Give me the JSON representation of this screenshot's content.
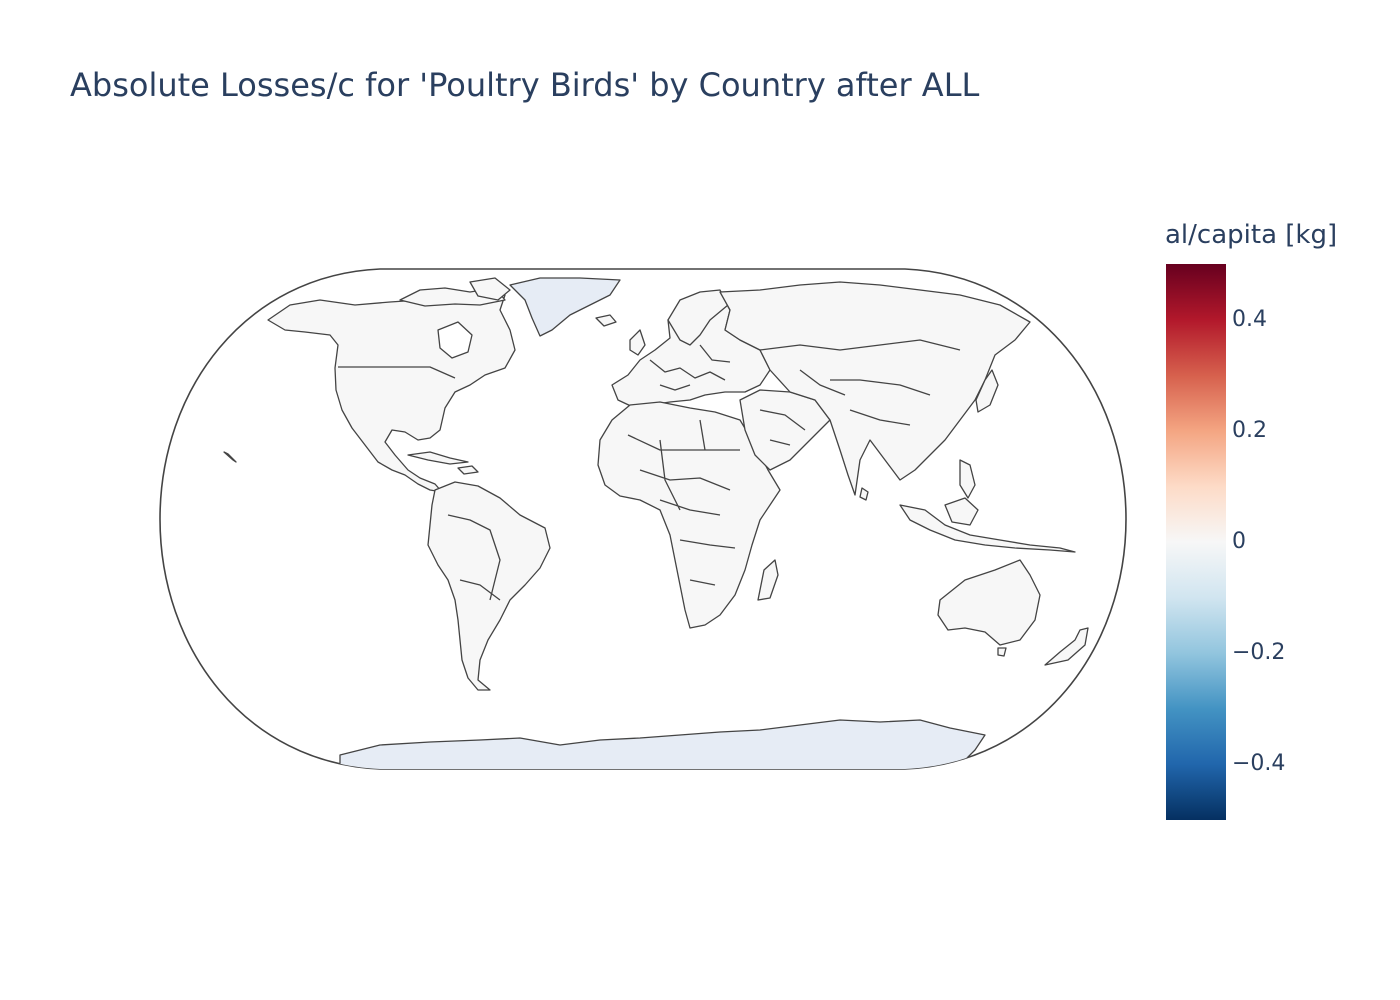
{
  "title": "Absolute Losses/c for 'Poultry Birds' by Country after ALL",
  "colorbar": {
    "title": "al/capita [kg]",
    "colorscale": "RdBu",
    "range": [
      -0.5,
      0.5
    ],
    "ticks": [
      "0.4",
      "0.2",
      "0",
      "−0.2",
      "−0.4"
    ]
  },
  "map": {
    "projection": "natural earth",
    "land_fill": "#f7f7f7",
    "greenland_antarctica_fill": "#e6ecf5",
    "border_color": "#444444"
  }
}
